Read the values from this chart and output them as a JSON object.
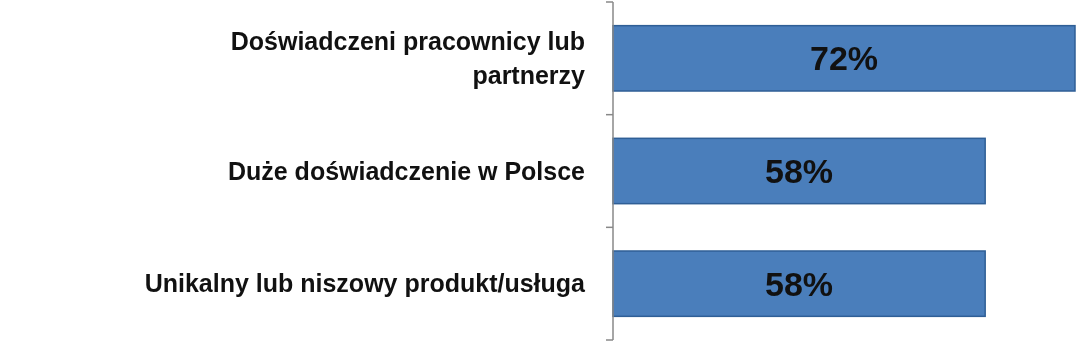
{
  "chart_data": {
    "type": "bar",
    "orientation": "horizontal",
    "categories": [
      "Doświadczeni pracownicy lub partnerzy",
      "Duże doświadczenie w Polsce",
      "Unikalny lub niszowy produkt/usługa"
    ],
    "values": [
      72,
      58,
      58
    ],
    "color": "#4a7ebb",
    "value_labels": [
      "72%",
      "58%",
      "58%"
    ],
    "xlim": [
      0,
      72
    ],
    "tick_labels": "y"
  }
}
